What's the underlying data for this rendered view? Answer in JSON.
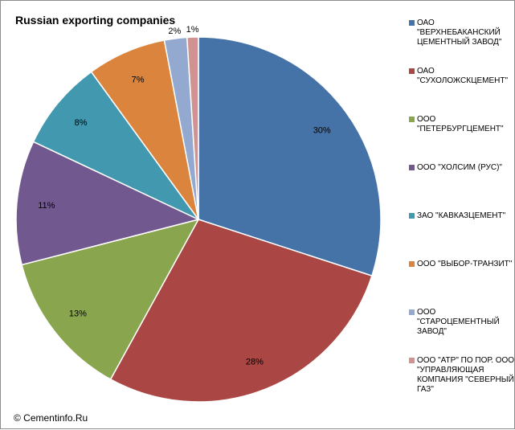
{
  "chart_data": {
    "type": "pie",
    "title": "Russian exporting companies",
    "slices": [
      {
        "name": "ОАО \"ВЕРХНЕБАКАНСКИЙ ЦЕМЕНТНЫЙ ЗАВОД\"",
        "value": 30,
        "label": "30%",
        "color": "#4572A7"
      },
      {
        "name": "ОАО \"СУХОЛОЖСКЦЕМЕНТ\"",
        "value": 28,
        "label": "28%",
        "color": "#AA4643"
      },
      {
        "name": "ООО \"ПЕТЕРБУРГЦЕМЕНТ\"",
        "value": 13,
        "label": "13%",
        "color": "#89A54E"
      },
      {
        "name": "ООО \"ХОЛСИМ (РУС)\"",
        "value": 11,
        "label": "11%",
        "color": "#71588F"
      },
      {
        "name": "ЗАО \"КАВКАЗЦЕМЕНТ\"",
        "value": 8,
        "label": "8%",
        "color": "#4198AF"
      },
      {
        "name": "ООО \"ВЫБОР-ТРАНЗИТ\"",
        "value": 7,
        "label": "7%",
        "color": "#DB843D"
      },
      {
        "name": "ООО \"СТАРОЦЕМЕНТНЫЙ ЗАВОД\"",
        "value": 2,
        "label": "2%",
        "color": "#93A9CF"
      },
      {
        "name": "ООО \"АТР\" ПО ПОР. ООО \"УПРАВЛЯЮЩАЯ КОМПАНИЯ \"СЕВЕРНЫЙ ГАЗ\"",
        "value": 1,
        "label": "1%",
        "color": "#D19392"
      }
    ],
    "legend_position": "right"
  },
  "copyright": "© Cementinfo.Ru"
}
